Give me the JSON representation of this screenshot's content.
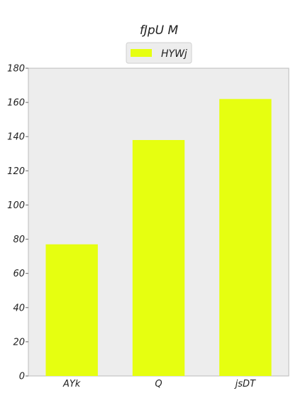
{
  "chart_data": {
    "type": "bar",
    "title": "fJpU M",
    "xlabel": "",
    "ylabel": "",
    "categories": [
      "AYk",
      "Q",
      "jsDT"
    ],
    "series": [
      {
        "name": "HYWj",
        "values": [
          77,
          138,
          162
        ],
        "color": "#e6ff10"
      }
    ],
    "ylim": [
      0,
      180
    ],
    "yticks": [
      0,
      20,
      40,
      60,
      80,
      100,
      120,
      140,
      160,
      180
    ],
    "grid": false,
    "legend": "top-center",
    "plot_background": "#ededed",
    "axes_color": "#bbbbbb"
  }
}
